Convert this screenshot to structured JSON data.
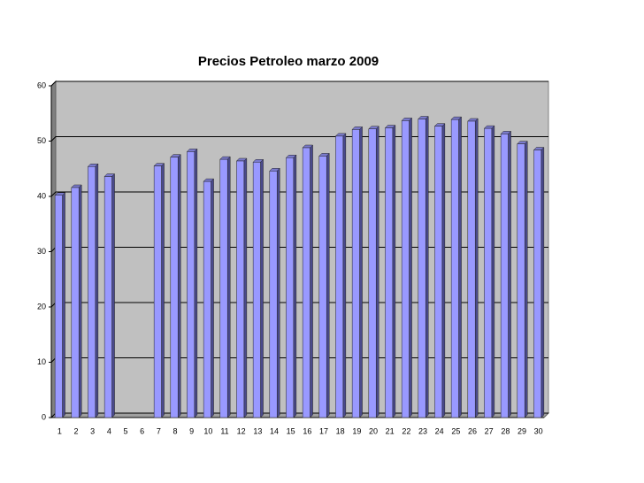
{
  "chart_data": {
    "type": "bar",
    "title": "Precios Petroleo marzo 2009",
    "categories": [
      "1",
      "2",
      "3",
      "4",
      "5",
      "6",
      "7",
      "8",
      "9",
      "10",
      "11",
      "12",
      "13",
      "14",
      "15",
      "16",
      "17",
      "18",
      "19",
      "20",
      "21",
      "22",
      "23",
      "24",
      "25",
      "26",
      "27",
      "28",
      "29",
      "30"
    ],
    "values": [
      40.2,
      41.6,
      45.4,
      43.6,
      null,
      null,
      45.5,
      47.1,
      48.1,
      42.7,
      46.7,
      46.4,
      46.2,
      44.6,
      47.0,
      48.8,
      47.3,
      50.9,
      52.1,
      52.2,
      52.4,
      53.7,
      54.0,
      52.7,
      53.9,
      53.6,
      52.3,
      51.3,
      49.5,
      48.4
    ],
    "color": "#9999ff",
    "ylim": [
      0,
      60
    ],
    "yticks": [
      0,
      10,
      20,
      30,
      40,
      50,
      60
    ],
    "grid": true
  }
}
